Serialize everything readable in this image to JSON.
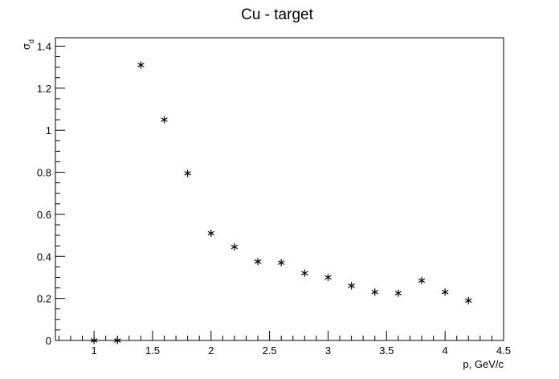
{
  "chart_data": {
    "type": "scatter",
    "title": "Cu - target",
    "xlabel": "p, GeV/c",
    "ylabel": "σ_d",
    "ylabel_main": "σ",
    "ylabel_sub": "d",
    "xlim": [
      0.67,
      4.5
    ],
    "ylim": [
      0,
      1.44
    ],
    "x_major_ticks": [
      1,
      1.5,
      2,
      2.5,
      3,
      3.5,
      4,
      4.5
    ],
    "x_tick_labels": [
      "1",
      "1.5",
      "2",
      "2.5",
      "3",
      "3.5",
      "4",
      "4.5"
    ],
    "y_major_ticks": [
      0,
      0.2,
      0.4,
      0.6,
      0.8,
      1,
      1.2,
      1.4
    ],
    "y_tick_labels": [
      "0",
      "0.2",
      "0.4",
      "0.6",
      "0.8",
      "1",
      "1.2",
      "1.4"
    ],
    "grid": false,
    "marker": "asterisk",
    "points": [
      {
        "x": 1.0,
        "y": 0.0
      },
      {
        "x": 1.2,
        "y": 0.0
      },
      {
        "x": 1.4,
        "y": 1.31
      },
      {
        "x": 1.6,
        "y": 1.05
      },
      {
        "x": 1.8,
        "y": 0.795
      },
      {
        "x": 2.0,
        "y": 0.51
      },
      {
        "x": 2.2,
        "y": 0.445
      },
      {
        "x": 2.4,
        "y": 0.375
      },
      {
        "x": 2.6,
        "y": 0.37
      },
      {
        "x": 2.8,
        "y": 0.32
      },
      {
        "x": 3.0,
        "y": 0.3
      },
      {
        "x": 3.2,
        "y": 0.26
      },
      {
        "x": 3.4,
        "y": 0.23
      },
      {
        "x": 3.6,
        "y": 0.225
      },
      {
        "x": 3.8,
        "y": 0.285
      },
      {
        "x": 4.0,
        "y": 0.23
      },
      {
        "x": 4.2,
        "y": 0.19
      }
    ]
  }
}
